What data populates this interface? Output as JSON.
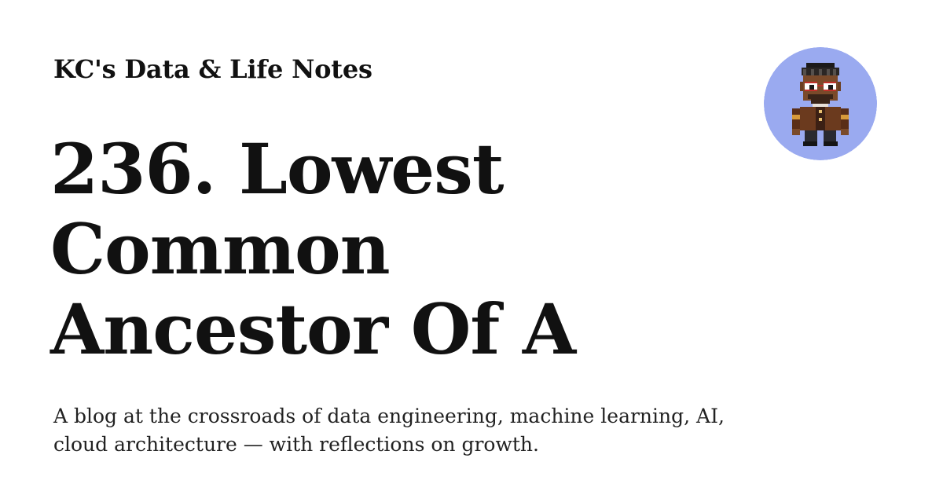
{
  "site": {
    "name": "KC's Data & Life Notes"
  },
  "post": {
    "title": "236. Lowest Common Ancestor Of A",
    "tagline": "A blog at the crossroads of data engineering, machine learning, AI, cloud architecture — with reflections on growth."
  },
  "avatar": {
    "icon": "pixel-art-person-avatar",
    "background_color": "#9aaaf0"
  },
  "colors": {
    "text": "#111111",
    "background": "#ffffff"
  }
}
